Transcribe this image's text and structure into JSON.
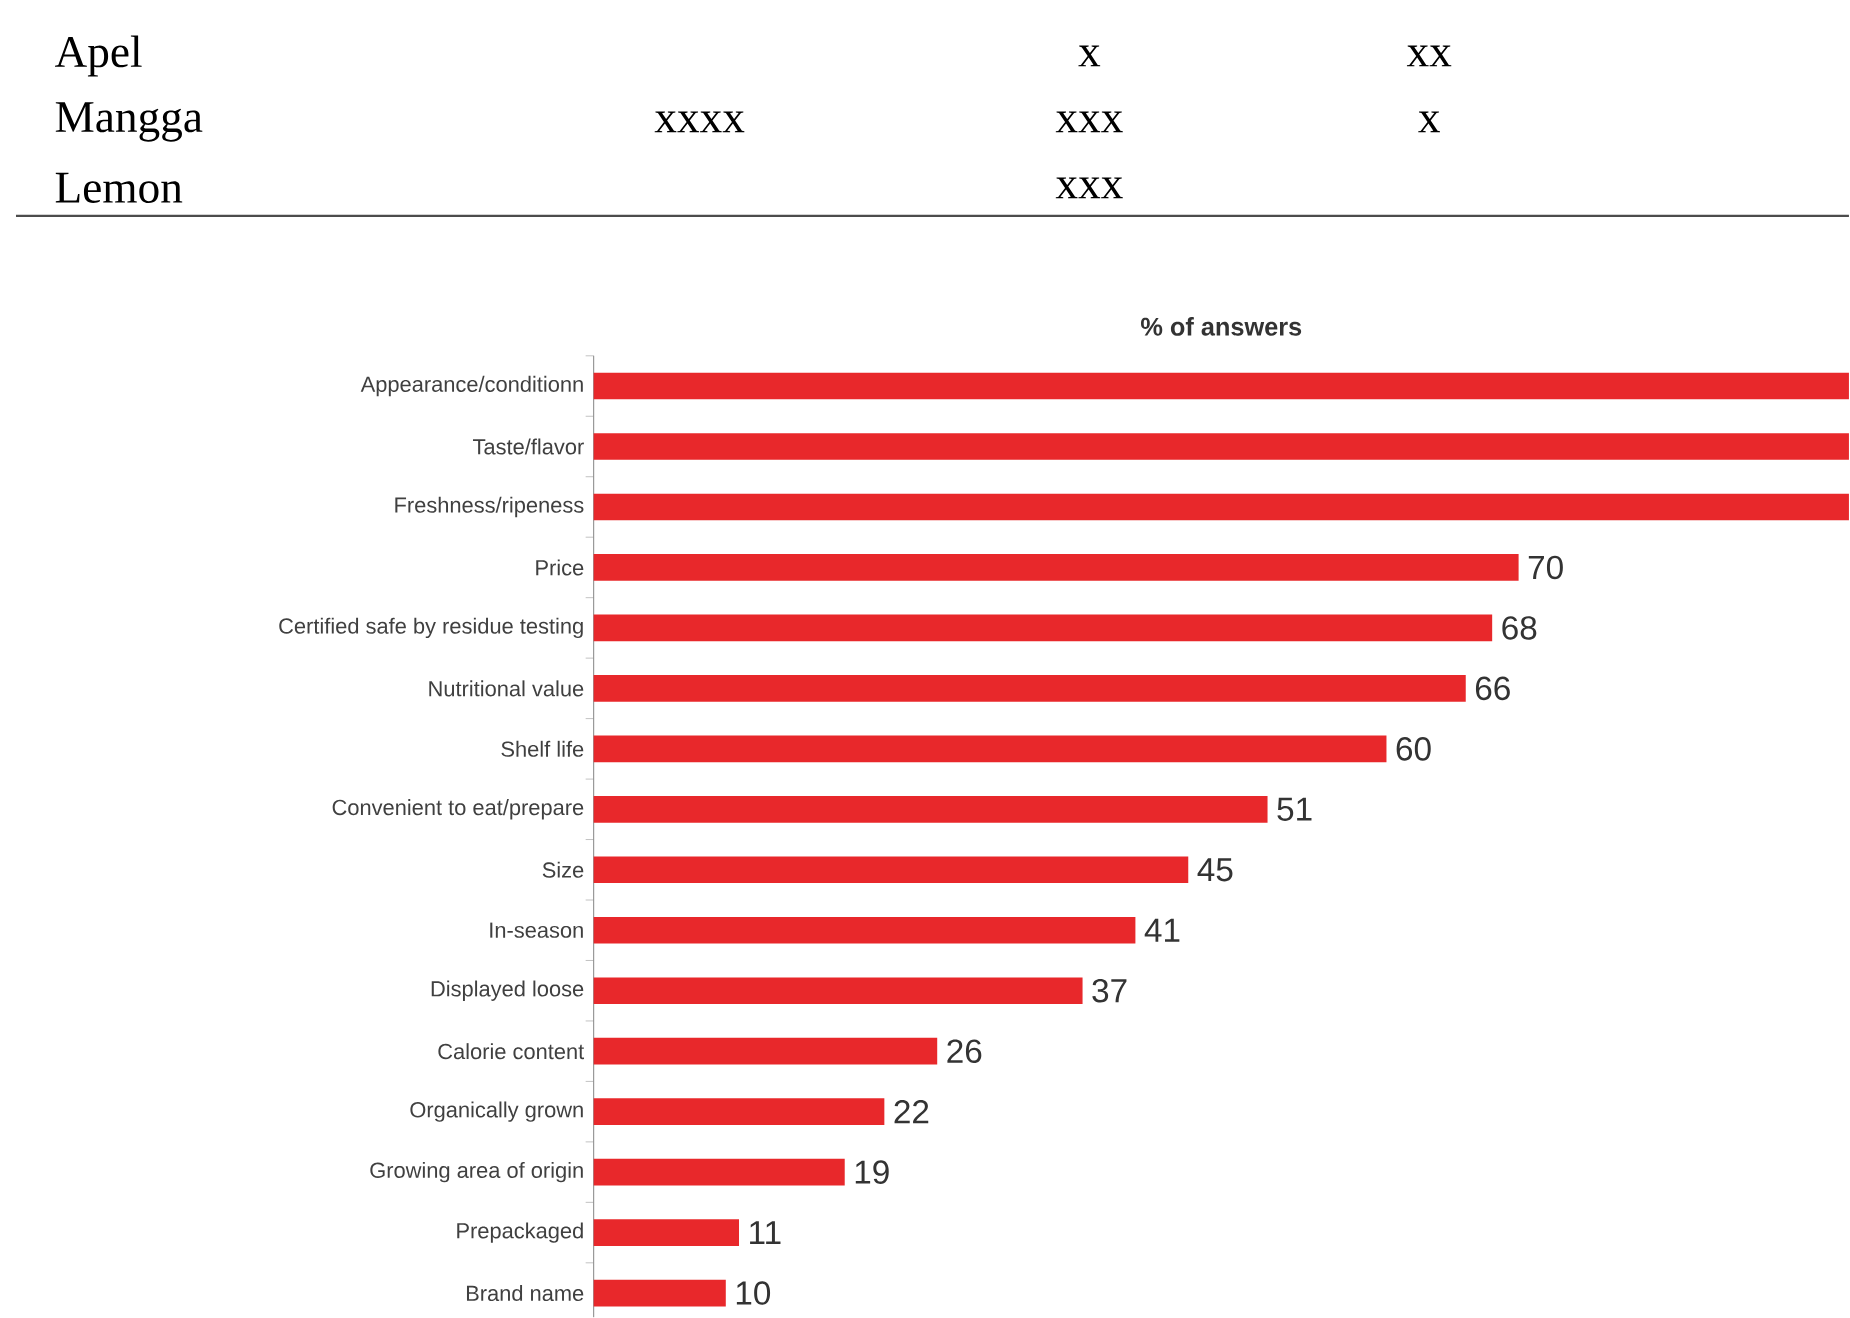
{
  "chart_data": {
    "type": "bar",
    "orientation": "horizontal",
    "title": "% of answers",
    "categories": [
      "Appearance/conditionn",
      "Taste/flavor",
      "Freshness/ripeness",
      "Price",
      "Certified safe by residue testing",
      "Nutritional value",
      "Shelf life",
      "Convenient to eat/prepare",
      "Size",
      "In-season",
      "Displayed loose",
      "Calorie content",
      "Organically grown",
      "Growing area of origin",
      "Prepackaged",
      "Brand name"
    ],
    "values": [
      95,
      95,
      95,
      70,
      68,
      66,
      60,
      51,
      45,
      41,
      37,
      26,
      22,
      19,
      11,
      10
    ],
    "value_labels": [
      null,
      null,
      null,
      "70",
      "68",
      "66",
      "60",
      "51",
      "45",
      "41",
      "37",
      "26",
      "22",
      "19",
      "11",
      "10"
    ],
    "color": "#e8282b",
    "annotations": [
      "Apel",
      "x",
      "xx",
      "Mangga",
      "xxxx",
      "xxx",
      "x",
      "Lemon",
      "xxx"
    ]
  }
}
